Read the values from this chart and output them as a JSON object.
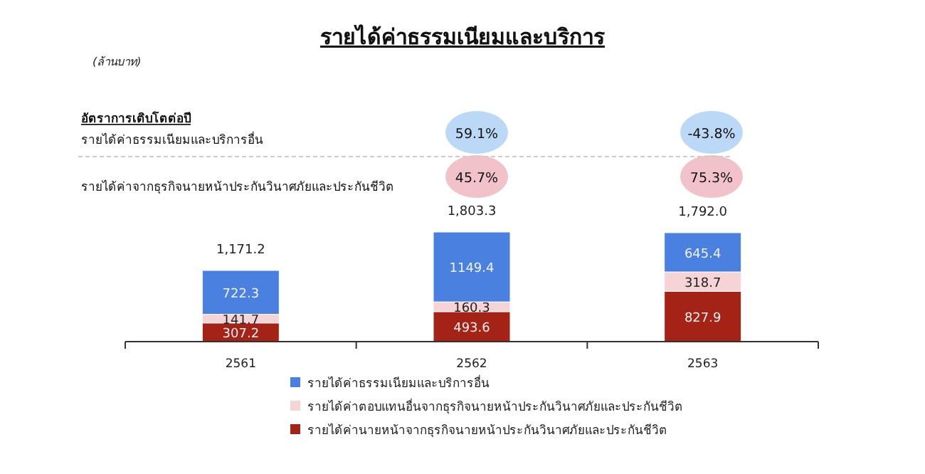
{
  "chart_data": {
    "type": "bar",
    "title": "รายได้ค่าธรรมเนียมและบริการ",
    "categories": [
      "2561",
      "2562",
      "2563"
    ],
    "stacked": true,
    "data_labels": true,
    "legend": "bottom",
    "series": [
      {
        "name": "รายได้ค่านายหน้าจากธุรกิจนายหน้าประกันวินาศภัยและประกันชีวิต",
        "color": "#a52316",
        "values": [
          307.2,
          493.6,
          827.9
        ]
      },
      {
        "name": "รายได้ค่าตอบแทนอื่นจากธุรกิจนายหน้าประกันวินาศภัยและประกันชีวิต",
        "color": "#f6d3d7",
        "values": [
          141.7,
          160.3,
          318.7
        ]
      },
      {
        "name": "รายได้ค่าธรรมเนียมและบริการอื่น",
        "color": "#4a80e0",
        "values": [
          722.3,
          1149.4,
          645.4
        ]
      }
    ],
    "totals": [
      "1,171.2",
      "1,803.3",
      "1,792.0"
    ],
    "annotations": [
      "(ล้านบาท)",
      "อัตราการเติบโตต่อปี",
      "รายได้ค่าธรรมเนียมและบริการอื่น",
      "59.1%",
      "-43.8%",
      "รายได้ค่าจากธุรกิจนายหน้าประกันวินาศภัยและประกันชีวิต",
      "45.7%",
      "75.3%"
    ]
  }
}
